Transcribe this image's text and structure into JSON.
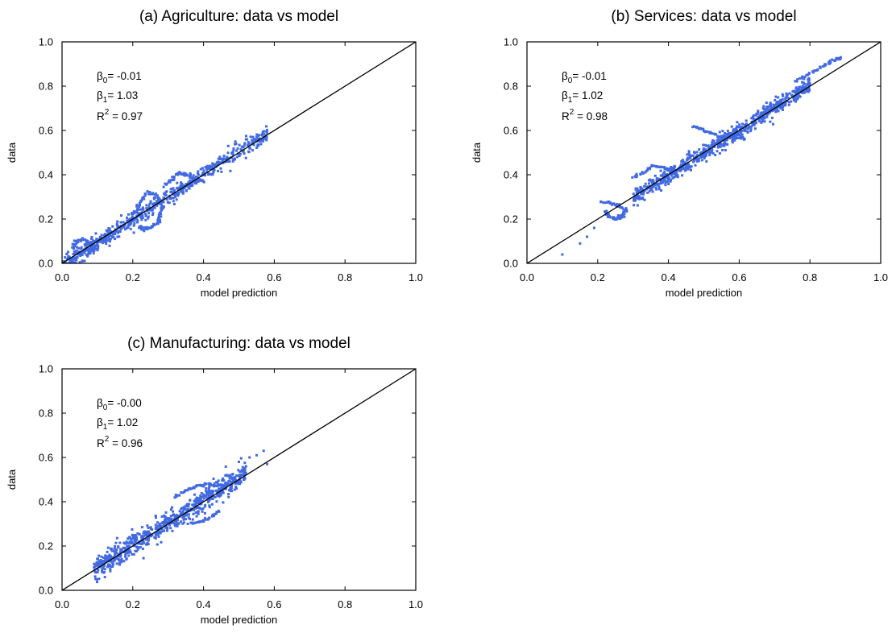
{
  "chart_data": [
    {
      "type": "scatter",
      "title": "(a) Agriculture: data vs model",
      "xlabel": "model prediction",
      "ylabel": "data",
      "xlim": [
        0.0,
        1.0
      ],
      "ylim": [
        0.0,
        1.0
      ],
      "xticks": [
        "0.0",
        "0.2",
        "0.4",
        "0.6",
        "0.8",
        "1.0"
      ],
      "yticks": [
        "0.0",
        "0.2",
        "0.4",
        "0.6",
        "0.8",
        "1.0"
      ],
      "grid": false,
      "point_color": "#4169e1",
      "reference_line": {
        "from": [
          0,
          0
        ],
        "to": [
          1,
          1
        ]
      },
      "annotations": {
        "b0": "-0.01",
        "b1": "1.03",
        "r2": "0.97"
      },
      "cloud": {
        "x_range": [
          0.0,
          0.58
        ],
        "intercept": -0.01,
        "slope": 1.03,
        "spread": 0.018,
        "count": 650
      },
      "excursions": [
        {
          "points": [
            [
              0.2,
              0.22
            ],
            [
              0.22,
              0.27
            ],
            [
              0.24,
              0.32
            ],
            [
              0.27,
              0.31
            ],
            [
              0.28,
              0.26
            ],
            [
              0.28,
              0.22
            ],
            [
              0.27,
              0.18
            ],
            [
              0.25,
              0.16
            ],
            [
              0.23,
              0.15
            ],
            [
              0.22,
              0.17
            ]
          ]
        },
        {
          "points": [
            [
              0.29,
              0.35
            ],
            [
              0.31,
              0.38
            ],
            [
              0.33,
              0.41
            ],
            [
              0.35,
              0.4
            ],
            [
              0.37,
              0.38
            ],
            [
              0.38,
              0.36
            ]
          ]
        },
        {
          "points": [
            [
              0.03,
              0.07
            ],
            [
              0.04,
              0.1
            ],
            [
              0.06,
              0.11
            ],
            [
              0.08,
              0.09
            ],
            [
              0.09,
              0.06
            ],
            [
              0.07,
              0.04
            ]
          ]
        }
      ],
      "extra_points": [
        [
          0.47,
          0.53
        ],
        [
          0.49,
          0.55
        ],
        [
          0.52,
          0.56
        ],
        [
          0.55,
          0.57
        ],
        [
          0.57,
          0.57
        ],
        [
          0.53,
          0.52
        ]
      ]
    },
    {
      "type": "scatter",
      "title": "(b) Services: data vs model",
      "xlabel": "model prediction",
      "ylabel": "data",
      "xlim": [
        0.0,
        1.0
      ],
      "ylim": [
        0.0,
        1.0
      ],
      "xticks": [
        "0.0",
        "0.2",
        "0.4",
        "0.6",
        "0.8",
        "1.0"
      ],
      "yticks": [
        "0.0",
        "0.2",
        "0.4",
        "0.6",
        "0.8",
        "1.0"
      ],
      "grid": false,
      "point_color": "#4169e1",
      "reference_line": {
        "from": [
          0,
          0
        ],
        "to": [
          1,
          1
        ]
      },
      "annotations": {
        "b0": "-0.01",
        "b1": "1.02",
        "r2": "0.98"
      },
      "cloud": {
        "x_range": [
          0.3,
          0.8
        ],
        "intercept": -0.01,
        "slope": 1.02,
        "spread": 0.018,
        "count": 700
      },
      "excursions": [
        {
          "points": [
            [
              0.21,
              0.28
            ],
            [
              0.24,
              0.27
            ],
            [
              0.26,
              0.26
            ],
            [
              0.28,
              0.24
            ],
            [
              0.27,
              0.21
            ],
            [
              0.25,
              0.2
            ],
            [
              0.23,
              0.21
            ],
            [
              0.22,
              0.24
            ]
          ]
        },
        {
          "points": [
            [
              0.3,
              0.39
            ],
            [
              0.33,
              0.41
            ],
            [
              0.36,
              0.44
            ],
            [
              0.39,
              0.43
            ],
            [
              0.41,
              0.42
            ]
          ]
        },
        {
          "points": [
            [
              0.47,
              0.62
            ],
            [
              0.5,
              0.6
            ],
            [
              0.53,
              0.58
            ],
            [
              0.56,
              0.57
            ],
            [
              0.6,
              0.57
            ],
            [
              0.62,
              0.56
            ]
          ]
        },
        {
          "points": [
            [
              0.76,
              0.82
            ],
            [
              0.8,
              0.86
            ],
            [
              0.84,
              0.89
            ],
            [
              0.87,
              0.92
            ],
            [
              0.89,
              0.93
            ]
          ]
        }
      ],
      "extra_points": [
        [
          0.1,
          0.04
        ],
        [
          0.15,
          0.09
        ],
        [
          0.17,
          0.12
        ],
        [
          0.19,
          0.16
        ]
      ]
    },
    {
      "type": "scatter",
      "title": "(c) Manufacturing: data vs model",
      "xlabel": "model prediction",
      "ylabel": "data",
      "xlim": [
        0.0,
        1.0
      ],
      "ylim": [
        0.0,
        1.0
      ],
      "xticks": [
        "0.0",
        "0.2",
        "0.4",
        "0.6",
        "0.8",
        "1.0"
      ],
      "yticks": [
        "0.0",
        "0.2",
        "0.4",
        "0.6",
        "0.8",
        "1.0"
      ],
      "grid": false,
      "point_color": "#4169e1",
      "reference_line": {
        "from": [
          0,
          0
        ],
        "to": [
          1,
          1
        ]
      },
      "annotations": {
        "b0": "-0.00",
        "b1": "1.02",
        "r2": "0.96"
      },
      "cloud": {
        "x_range": [
          0.09,
          0.52
        ],
        "intercept": 0.0,
        "slope": 1.02,
        "spread": 0.025,
        "count": 700
      },
      "excursions": [
        {
          "points": [
            [
              0.32,
              0.42
            ],
            [
              0.35,
              0.45
            ],
            [
              0.38,
              0.47
            ],
            [
              0.41,
              0.48
            ],
            [
              0.44,
              0.47
            ]
          ]
        },
        {
          "points": [
            [
              0.36,
              0.3
            ],
            [
              0.39,
              0.31
            ],
            [
              0.42,
              0.33
            ],
            [
              0.45,
              0.36
            ]
          ]
        }
      ],
      "extra_points": [
        [
          0.5,
          0.58
        ],
        [
          0.53,
          0.6
        ],
        [
          0.55,
          0.61
        ],
        [
          0.57,
          0.63
        ],
        [
          0.52,
          0.56
        ],
        [
          0.58,
          0.57
        ]
      ]
    }
  ]
}
